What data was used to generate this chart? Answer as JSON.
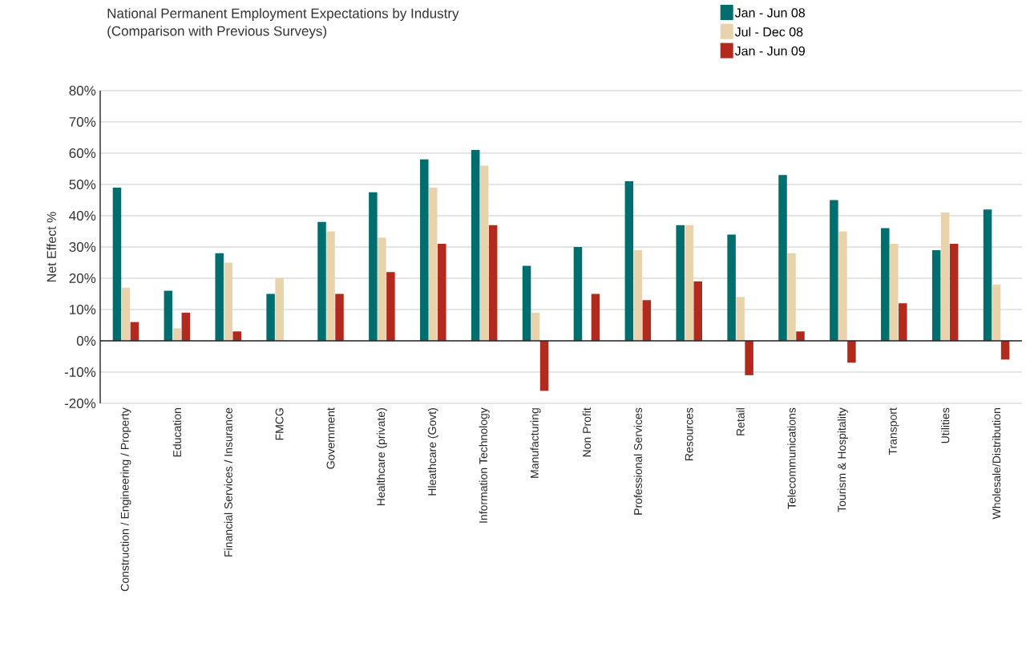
{
  "chart_data": {
    "type": "bar",
    "title": "National Permanent Employment Expectations by Industry",
    "subtitle": "(Comparison with Previous Surveys)",
    "ylabel": "Net Effect %",
    "categories": [
      "Construction / Engineering / Property",
      "Education",
      "Financial Services / Insurance",
      "FMCG",
      "Government",
      "Healthcare (private)",
      "Hleathcare (Govt)",
      "Information Technology",
      "Manufacturing",
      "Non Profit",
      "Professional Services",
      "Resources",
      "Retail",
      "Telecommunications",
      "Tourism & Hospitality",
      "Transport",
      "Utilities",
      "Wholesale/Distribution"
    ],
    "series": [
      {
        "name": "Jan - Jun 08",
        "color": "#006e6e",
        "values": [
          49,
          16,
          28,
          15,
          38,
          47.5,
          58,
          61,
          24,
          30,
          51,
          37,
          34,
          53,
          45,
          36,
          29,
          42
        ]
      },
      {
        "name": "Jul - Dec 08",
        "color": "#e8d3ad",
        "values": [
          17,
          4,
          25,
          20,
          35,
          33,
          49,
          56,
          9,
          null,
          29,
          37,
          14,
          28,
          35,
          31,
          41,
          18
        ]
      },
      {
        "name": "Jan - Jun 09",
        "color": "#b22a1e",
        "values": [
          6,
          9,
          3,
          null,
          15,
          22,
          31,
          37,
          -16,
          15,
          13,
          19,
          -11,
          3,
          -7,
          12,
          31,
          -6
        ]
      }
    ],
    "ylim": [
      -20,
      80
    ],
    "yticks": [
      {
        "value": -20,
        "label": "-20%"
      },
      {
        "value": -10,
        "label": "-10%"
      },
      {
        "value": 0,
        "label": "0%"
      },
      {
        "value": 10,
        "label": "10%"
      },
      {
        "value": 20,
        "label": "20%"
      },
      {
        "value": 30,
        "label": "30%"
      },
      {
        "value": 40,
        "label": "40%"
      },
      {
        "value": 50,
        "label": "50%"
      },
      {
        "value": 60,
        "label": "60%"
      },
      {
        "value": 70,
        "label": "70%"
      },
      {
        "value": 80,
        "label": "80%"
      }
    ],
    "grid": "y",
    "legend": "top right"
  }
}
